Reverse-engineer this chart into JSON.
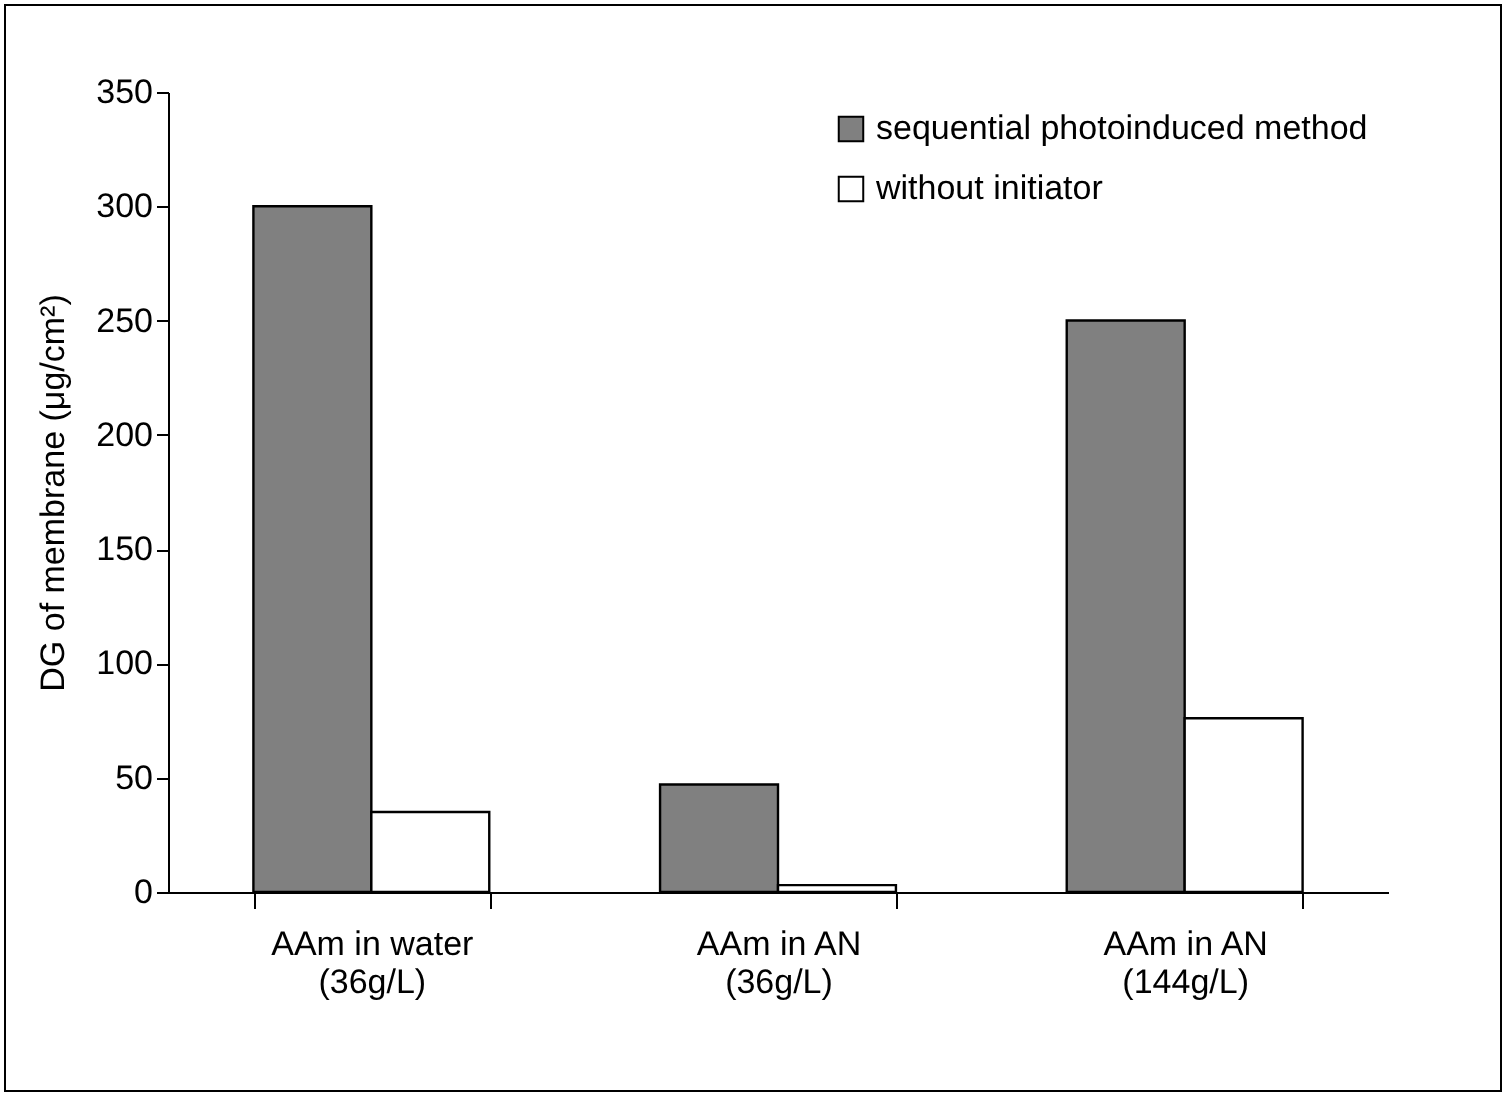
{
  "chart_data": {
    "type": "bar",
    "ylabel": "DG of membrane (μg/cm²)",
    "categories": [
      "AAm in water\n(36g/L)",
      "AAm in AN\n(36g/L)",
      "AAm in AN\n(144g/L)"
    ],
    "series": [
      {
        "name": "sequential photoinduced method",
        "color": "#808080",
        "values": [
          300,
          47,
          250
        ]
      },
      {
        "name": "without initiator",
        "color": "#ffffff",
        "values": [
          35,
          3,
          76
        ]
      }
    ],
    "ylim": [
      0,
      350
    ],
    "yticks": [
      0,
      50,
      100,
      150,
      200,
      250,
      300,
      350
    ],
    "grid": false,
    "legend": "top right"
  }
}
